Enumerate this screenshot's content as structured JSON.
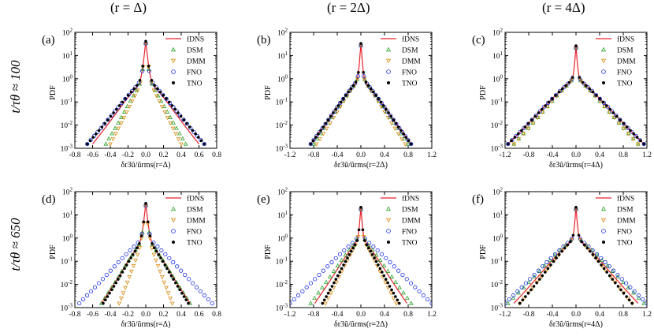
{
  "figure": {
    "col_titles": [
      "(r = Δ)",
      "(r = 2Δ)",
      "(r = 4Δ)"
    ],
    "row_titles": [
      "t/τθ ≈ 100",
      "t/τθ ≈ 650"
    ]
  },
  "legend_labels": [
    "fDNS",
    "DSM",
    "DMM",
    "FNO",
    "TNO"
  ],
  "colors": {
    "fDNS": "#e8202a",
    "DSM": "#2aa02a",
    "DMM": "#d98b12",
    "FNO": "#1a2fe0",
    "TNO": "#000000"
  },
  "chart_data": [
    {
      "panel": "(a)",
      "type": "line",
      "ylabel": "PDF",
      "xlabel": "δr3ũ/ũrms(r=Δ)",
      "xlim": [
        -0.8,
        0.8
      ],
      "ylim_log10": [
        -3,
        2
      ],
      "xticks": [
        "-0.8",
        "-0.6",
        "-0.4",
        "-0.2",
        "0.0",
        "0.2",
        "0.4",
        "0.6",
        "0.8"
      ],
      "yticks": [
        "10-3",
        "10-2",
        "10-1",
        "100",
        "101",
        "102"
      ],
      "peak": 40,
      "widths": {
        "fDNS": 0.6,
        "DSM": 0.45,
        "DMM": 0.4,
        "FNO": 0.66,
        "TNO": 0.66
      }
    },
    {
      "panel": "(b)",
      "type": "line",
      "ylabel": "PDF",
      "xlabel": "δr3ũ/ũrms(r=2Δ)",
      "xlim": [
        -1.2,
        1.2
      ],
      "ylim_log10": [
        -3,
        2
      ],
      "xticks": [
        "-1.2",
        "-0.8",
        "-0.4",
        "0.0",
        "0.4",
        "0.8",
        "1.2"
      ],
      "yticks": [
        "10-3",
        "10-2",
        "10-1",
        "100",
        "101",
        "102"
      ],
      "peak": 32,
      "widths": {
        "fDNS": 0.85,
        "DSM": 0.8,
        "DMM": 0.75,
        "FNO": 0.85,
        "TNO": 0.85
      }
    },
    {
      "panel": "(c)",
      "type": "line",
      "ylabel": "PDF",
      "xlabel": "δr3ũ/ũrms(r=4Δ)",
      "xlim": [
        -1.2,
        1.2
      ],
      "ylim_log10": [
        -3,
        2
      ],
      "xticks": [
        "-1.2",
        "-0.8",
        "-0.4",
        "0.0",
        "0.4",
        "0.8",
        "1.2"
      ],
      "yticks": [
        "10-3",
        "10-2",
        "10-1",
        "100",
        "101",
        "102"
      ],
      "peak": 25,
      "widths": {
        "fDNS": 1.15,
        "DSM": 1.05,
        "DMM": 1.05,
        "FNO": 1.15,
        "TNO": 1.15
      }
    },
    {
      "panel": "(d)",
      "type": "line",
      "ylabel": "PDF",
      "xlabel": "δr3ũ/ũrms(r=Δ)",
      "xlim": [
        -0.8,
        0.8
      ],
      "ylim_log10": [
        -3,
        2
      ],
      "xticks": [
        "-0.8",
        "-0.6",
        "-0.4",
        "-0.2",
        "0.0",
        "0.2",
        "0.4",
        "0.6",
        "0.8"
      ],
      "yticks": [
        "10-3",
        "10-2",
        "10-1",
        "100",
        "101",
        "102"
      ],
      "peak": 30,
      "widths": {
        "fDNS": 0.5,
        "DSM": 0.5,
        "DMM": 0.3,
        "FNO": 0.75,
        "TNO": 0.48
      }
    },
    {
      "panel": "(e)",
      "type": "line",
      "ylabel": "PDF",
      "xlabel": "δr3ũ/ũrms(r=2Δ)",
      "xlim": [
        -1.2,
        1.2
      ],
      "ylim_log10": [
        -3,
        2
      ],
      "xticks": [
        "-1.2",
        "-0.8",
        "-0.4",
        "0.0",
        "0.4",
        "0.8",
        "1.2"
      ],
      "yticks": [
        "10-3",
        "10-2",
        "10-1",
        "100",
        "101",
        "102"
      ],
      "peak": 20,
      "widths": {
        "fDNS": 0.78,
        "DSM": 0.85,
        "DMM": 0.6,
        "FNO": 1.2,
        "TNO": 0.65
      }
    },
    {
      "panel": "(f)",
      "type": "line",
      "ylabel": "PDF",
      "xlabel": "δr3ũ/ũrms(r=4Δ)",
      "xlim": [
        -1.2,
        1.2
      ],
      "ylim_log10": [
        -3,
        2
      ],
      "xticks": [
        "-1.2",
        "-0.8",
        "-0.4",
        "0.0",
        "0.4",
        "0.8",
        "1.2"
      ],
      "yticks": [
        "10-3",
        "10-2",
        "10-1",
        "100",
        "101",
        "102"
      ],
      "peak": 20,
      "widths": {
        "fDNS": 1.05,
        "DSM": 1.15,
        "DMM": 0.95,
        "FNO": 1.2,
        "TNO": 0.95
      }
    }
  ]
}
